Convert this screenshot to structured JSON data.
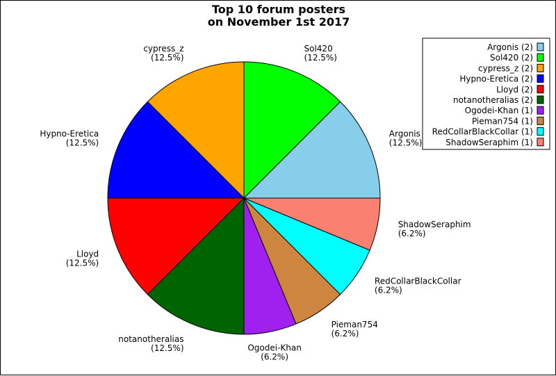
{
  "chart_data": {
    "type": "pie",
    "title": [
      "Top 10 forum posters",
      "on November 1st 2017"
    ],
    "start": "right",
    "direction": "counterclockwise",
    "legend_position": "top-right",
    "slices": [
      {
        "name": "Argonis",
        "value": 2,
        "percent": "12.5%",
        "color": "#87CEEB",
        "legend": "Argonis (2)"
      },
      {
        "name": "Sol420",
        "value": 2,
        "percent": "12.5%",
        "color": "#00FF00",
        "legend": "Sol420 (2)"
      },
      {
        "name": "cypress_z",
        "value": 2,
        "percent": "12.5%",
        "color": "#FFA500",
        "legend": "cypress_z (2)"
      },
      {
        "name": "Hypno-Eretica",
        "value": 2,
        "percent": "12.5%",
        "color": "#0000FF",
        "legend": "Hypno-Eretica (2)"
      },
      {
        "name": "Lloyd",
        "value": 2,
        "percent": "12.5%",
        "color": "#FF0000",
        "legend": "Lloyd (2)"
      },
      {
        "name": "notanotheralias",
        "value": 2,
        "percent": "12.5%",
        "color": "#006400",
        "legend": "notanotheralias (2)"
      },
      {
        "name": "Ogodei-Khan",
        "value": 1,
        "percent": "6.2%",
        "color": "#A020F0",
        "legend": "Ogodei-Khan (1)"
      },
      {
        "name": "Pieman754",
        "value": 1,
        "percent": "6.2%",
        "color": "#CD853F",
        "legend": "Pieman754 (1)"
      },
      {
        "name": "RedCollarBlackCollar",
        "value": 1,
        "percent": "6.2%",
        "color": "#00FFFF",
        "legend": "RedCollarBlackCollar (1)"
      },
      {
        "name": "ShadowSeraphim",
        "value": 1,
        "percent": "6.2%",
        "color": "#FA8072",
        "legend": "ShadowSeraphim (1)"
      }
    ]
  }
}
